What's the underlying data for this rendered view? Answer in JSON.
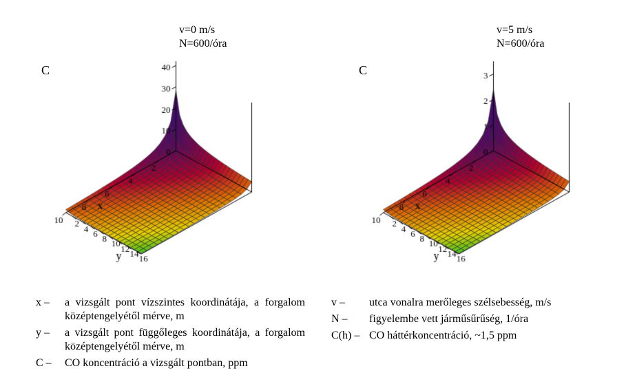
{
  "figure": {
    "background_color": "#ffffff",
    "font_family": "Times New Roman",
    "font_color": "#000000"
  },
  "charts": [
    {
      "annotation_lines": [
        "v=0 m/s",
        "N=600/óra"
      ],
      "annotation_fontsize": 16,
      "z_label": "C",
      "x_label": "x",
      "y_label": "y",
      "x_range": [
        0.5,
        10
      ],
      "y_range": [
        0.5,
        17
      ],
      "z_range": [
        0,
        42
      ],
      "z_ticks": [
        0,
        10,
        20,
        30,
        40
      ],
      "x_ticks": [
        0,
        2,
        4,
        6,
        8,
        10
      ],
      "y_ticks": [
        0,
        2,
        4,
        6,
        8,
        10,
        12,
        14,
        16
      ],
      "grid_nx": 22,
      "grid_ny": 22,
      "func_k": 10.0,
      "func_off": 0.0,
      "mesh_color": "#222222",
      "palette": {
        "low": "#3c0f6c",
        "mid1": "#b3002d",
        "mid2": "#e07000",
        "mid3": "#e8d000",
        "high": "#40c020"
      },
      "box_line_color": "#000000",
      "tick_fontsize": 13,
      "label_fontsize": 16
    },
    {
      "annotation_lines": [
        "v=5 m/s",
        "N=600/óra"
      ],
      "annotation_fontsize": 16,
      "z_label": "C",
      "x_label": "x",
      "y_label": "y",
      "x_range": [
        0.5,
        10
      ],
      "y_range": [
        0.5,
        17
      ],
      "z_range": [
        0,
        3.5
      ],
      "z_ticks": [
        0,
        1,
        2,
        3
      ],
      "x_ticks": [
        0,
        2,
        4,
        6,
        8,
        10
      ],
      "y_ticks": [
        0,
        2,
        4,
        6,
        8,
        10,
        12,
        14,
        16
      ],
      "grid_nx": 22,
      "grid_ny": 22,
      "func_k": 0.85,
      "func_off": 0.0,
      "mesh_color": "#222222",
      "palette": {
        "low": "#3c0f6c",
        "mid1": "#b3002d",
        "mid2": "#e07000",
        "mid3": "#e8d000",
        "high": "#40c020"
      },
      "box_line_color": "#000000",
      "tick_fontsize": 13,
      "label_fontsize": 16
    }
  ],
  "legend": {
    "fontsize": 16,
    "left": [
      {
        "sym": "x –",
        "text": "a vizsgált pont vízszintes koordinátája, a forgalom középtengelyétől mérve, m"
      },
      {
        "sym": "y –",
        "text": "a vizsgált pont függőleges koordinátája, a forgalom középtengelyétől mérve, m"
      },
      {
        "sym": "C –",
        "text": "CO koncentráció a vizsgált pontban, ppm"
      }
    ],
    "right": [
      {
        "sym": "v –",
        "text": "utca vonalra merőleges szélsebesség, m/s"
      },
      {
        "sym": "N –",
        "text": "figyelembe vett járműsűrűség, 1/óra"
      },
      {
        "sym": "C(h) –",
        "text": "CO háttérkoncentráció, ~1,5 ppm"
      }
    ]
  }
}
